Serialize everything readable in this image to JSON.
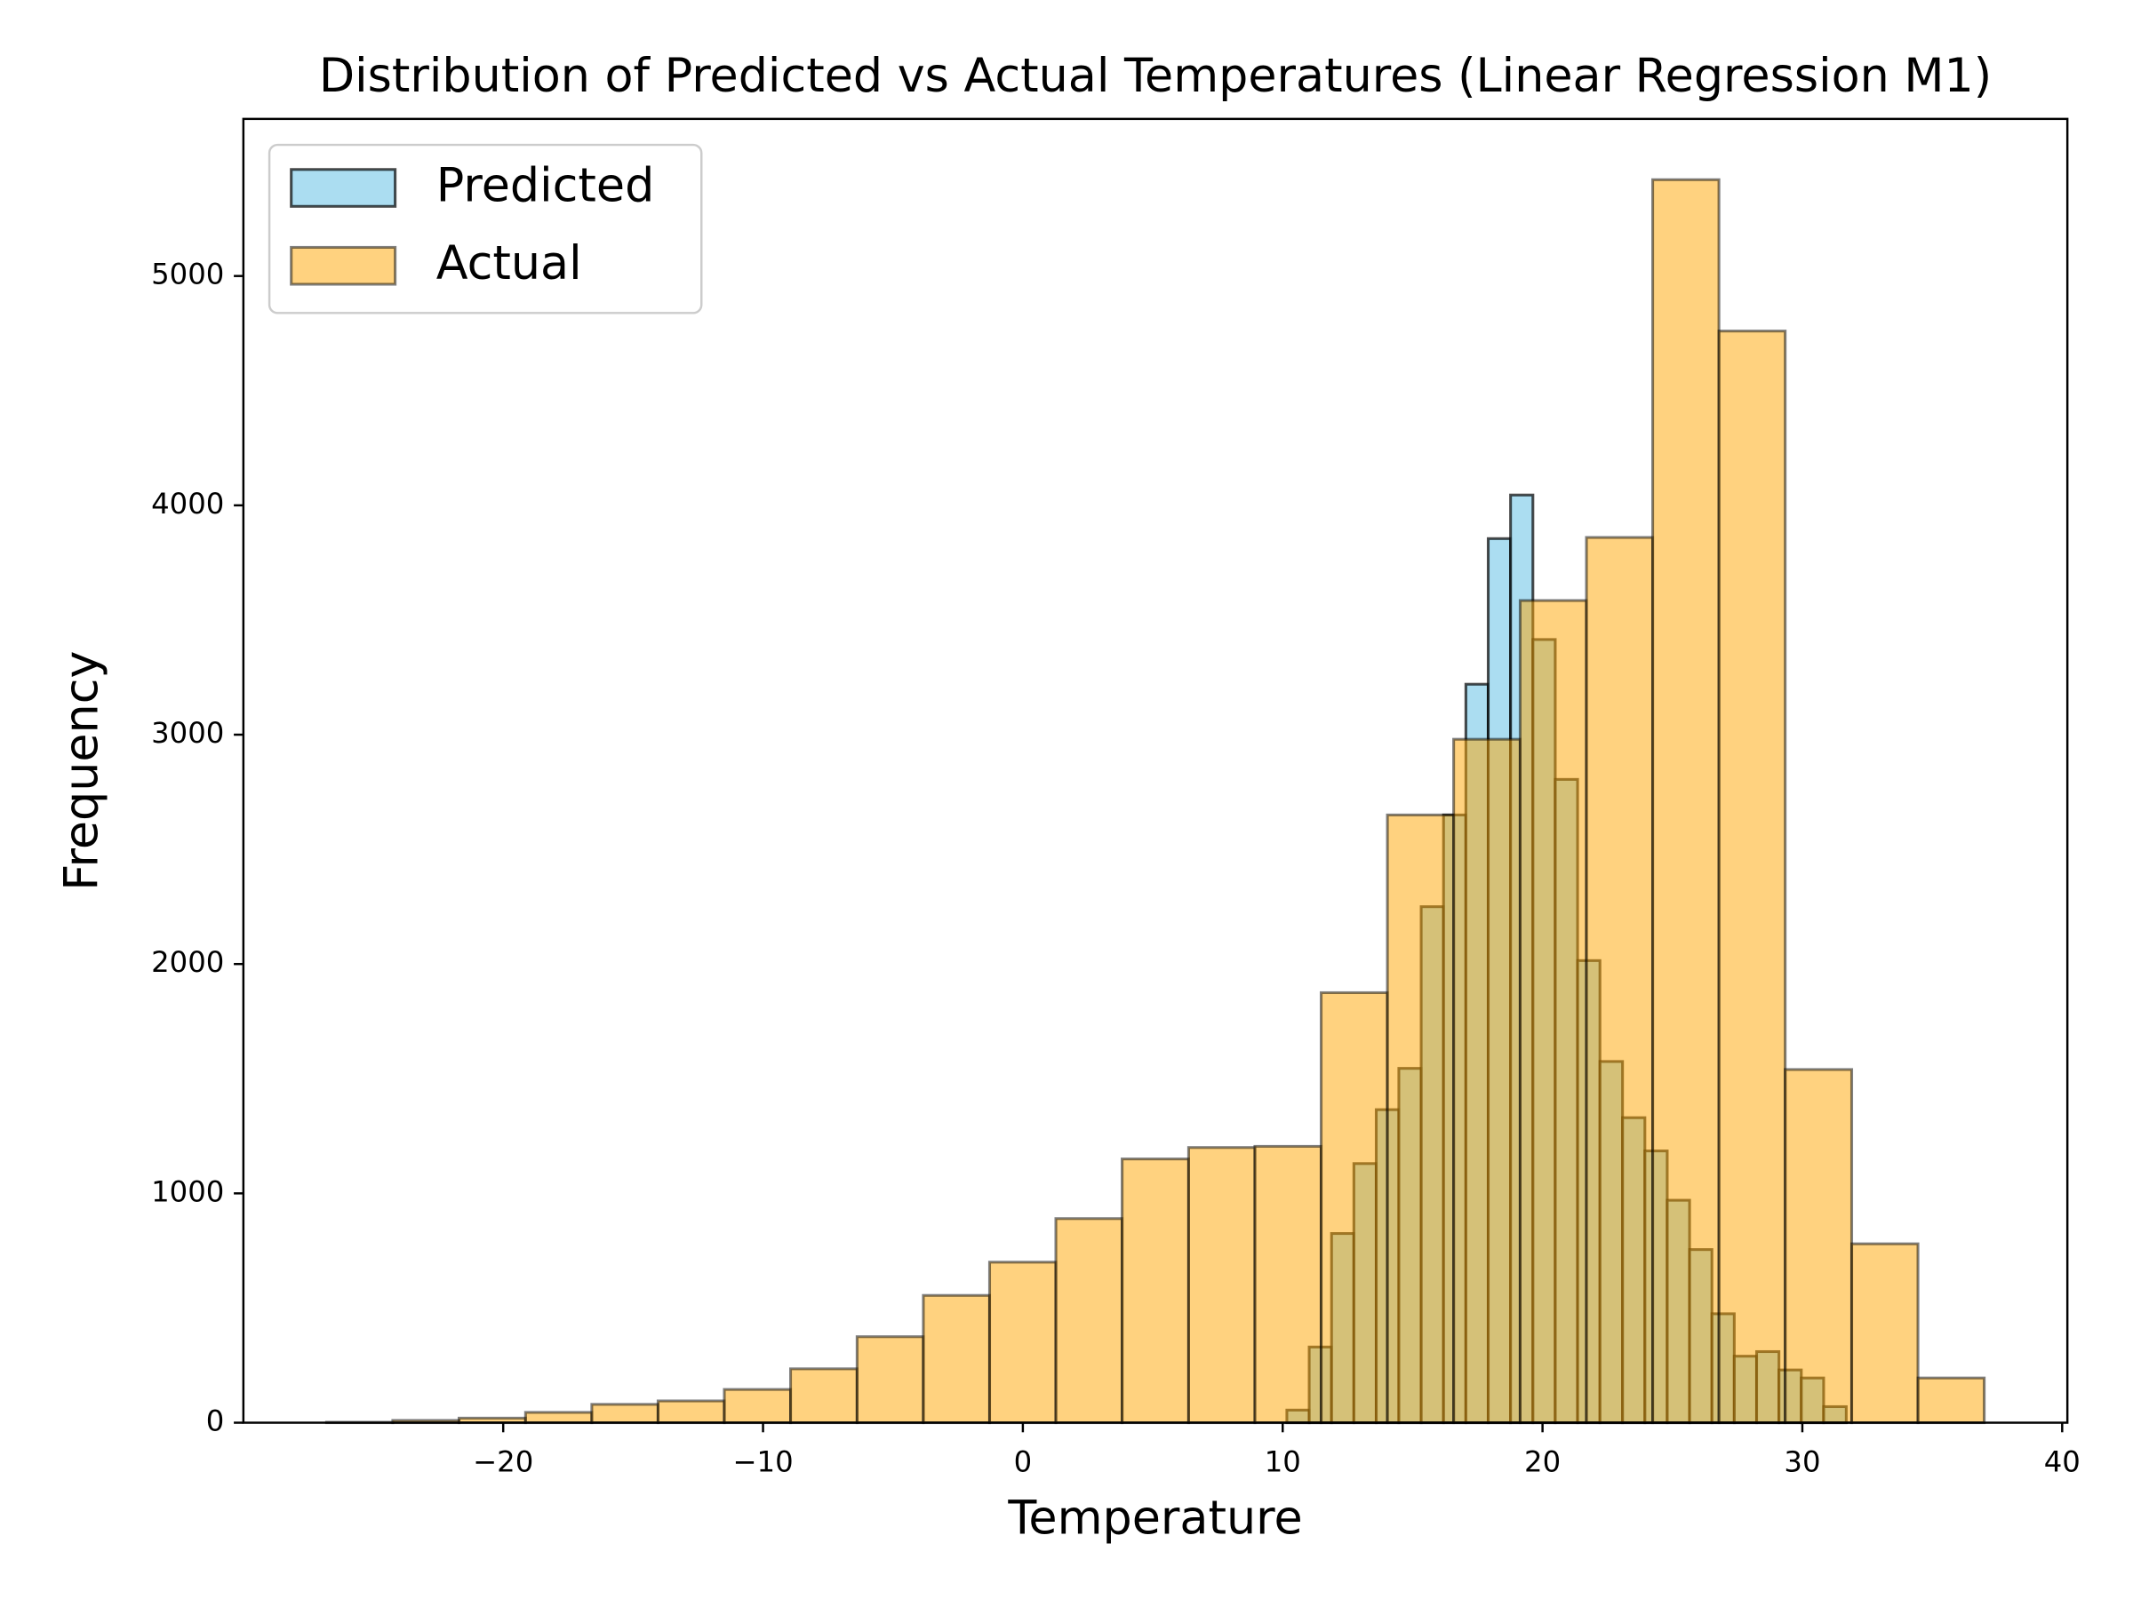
{
  "chart_data": {
    "type": "histogram",
    "title": "Distribution of Predicted vs Actual Temperatures (Linear Regression M1)",
    "x_label": "Temperature",
    "y_label": "Frequency",
    "xlim": [
      -30.0,
      40.2
    ],
    "ylim": [
      0,
      5685
    ],
    "xticks": [
      {
        "value": -20,
        "label": "−20"
      },
      {
        "value": -10,
        "label": "−10"
      },
      0,
      10,
      20,
      30,
      40
    ],
    "yticks": [
      0,
      1000,
      2000,
      3000,
      4000,
      5000
    ],
    "legend": "upper left",
    "series": [
      {
        "name": "Predicted",
        "color": "#87ceeb",
        "opacity": 0.7,
        "bins": [
          10.16,
          11.02,
          11.88,
          12.74,
          13.6,
          14.47,
          15.33,
          16.19,
          17.05,
          17.91,
          18.77,
          19.63,
          20.49,
          21.35,
          22.21,
          23.08,
          23.94,
          24.8,
          25.66,
          26.52,
          27.38,
          28.24,
          29.1,
          29.96,
          30.82,
          31.69
        ],
        "values": [
          55,
          330,
          825,
          1130,
          1365,
          1545,
          2250,
          2650,
          3220,
          3855,
          4045,
          3415,
          2805,
          2015,
          1575,
          1330,
          1185,
          970,
          755,
          475,
          290,
          310,
          230,
          195,
          70
        ]
      },
      {
        "name": "Actual",
        "color": "#ffa500",
        "opacity": 0.5,
        "bins": [
          -26.8,
          -24.25,
          -21.7,
          -19.14,
          -16.59,
          -14.04,
          -11.49,
          -8.94,
          -6.38,
          -3.83,
          -1.28,
          1.27,
          3.82,
          6.38,
          8.93,
          11.48,
          14.03,
          16.58,
          19.14,
          21.69,
          24.24,
          26.79,
          29.34,
          31.9,
          34.45,
          37.0
        ],
        "values": [
          2,
          10,
          20,
          45,
          80,
          95,
          145,
          235,
          375,
          555,
          700,
          890,
          1150,
          1200,
          1205,
          1875,
          2650,
          2980,
          3585,
          3860,
          5420,
          4760,
          1540,
          780,
          195
        ]
      }
    ]
  }
}
